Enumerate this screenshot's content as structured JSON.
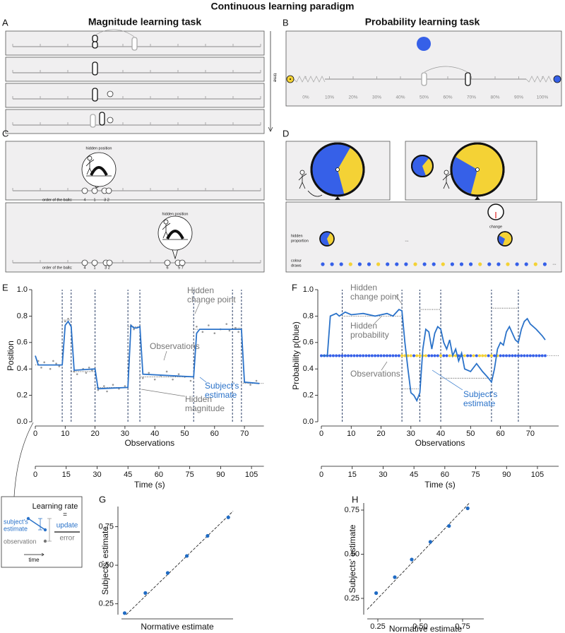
{
  "title": "Continuous learning paradigm",
  "panels": {
    "A": {
      "label": "A",
      "title": "Magnitude learning task",
      "time": "time"
    },
    "B": {
      "label": "B",
      "title": "Probability learning task",
      "scale": [
        "0%",
        "10%",
        "20%",
        "30%",
        "40%",
        "50%",
        "60%",
        "70%",
        "80%",
        "90%",
        "100%"
      ]
    },
    "C": {
      "label": "C",
      "top": {
        "hidden": "hidden position",
        "order": "order of the balls:",
        "balls": [
          "4",
          "1",
          "3 2"
        ]
      },
      "bottom": {
        "hidden": "hidden position",
        "order": "order of the balls:",
        "balls": [
          "4",
          "1",
          "3 2",
          "6",
          "5 7"
        ]
      }
    },
    "D": {
      "label": "D",
      "change": "change",
      "hidden_proportion": [
        "hidden",
        "proportion"
      ],
      "colour_draws": [
        "colour",
        "draws"
      ],
      "ellipsis": [
        "...",
        "..."
      ],
      "draws": "bbbybbybbbybbybbbybbybbyb",
      "colors": {
        "b": "#3660e8",
        "y": "#f4d235"
      }
    },
    "inset": {
      "title": "Learning rate",
      "equals": "=",
      "estimate": [
        "subject's",
        "estimate"
      ],
      "update": "update",
      "error": "error",
      "observation": "observation",
      "time": "time"
    }
  },
  "chart_data": [
    {
      "label": "E",
      "type": "line",
      "xlabel": "Observations",
      "ylabel": "Position",
      "xlim": [
        0,
        76.5
      ],
      "xticks": [
        0,
        10,
        20,
        30,
        40,
        50,
        60,
        70
      ],
      "ylim": [
        0,
        1
      ],
      "yticks": [
        {
          "value": 0,
          "label": "0.0"
        },
        0.2,
        0.4,
        0.6,
        0.8,
        {
          "value": 1,
          "label": "1.0"
        }
      ],
      "x2label": "Time (s)",
      "x2lim": [
        0,
        111
      ],
      "x2ticks": [
        0,
        15,
        30,
        45,
        60,
        75,
        90,
        105
      ],
      "change_points": [
        9,
        12,
        20,
        31,
        35,
        53,
        66,
        69
      ],
      "hidden_levels": [
        0.43,
        0.77,
        0.38,
        0.26,
        0.72,
        0.34,
        0.7,
        0.71,
        0.29
      ],
      "estimate": {
        "color": "#2a72c9",
        "x": [
          0,
          1,
          9,
          10,
          11,
          12,
          13,
          20,
          21,
          31,
          32,
          33,
          34,
          35,
          36,
          53,
          54,
          55,
          69,
          70,
          75
        ],
        "values": [
          0.5,
          0.43,
          0.43,
          0.73,
          0.76,
          0.72,
          0.39,
          0.4,
          0.25,
          0.26,
          0.73,
          0.71,
          0.71,
          0.72,
          0.36,
          0.34,
          0.67,
          0.7,
          0.7,
          0.3,
          0.29
        ]
      },
      "observations": {
        "color": "#9a9a9a",
        "x": [
          1,
          2,
          3,
          5,
          6,
          7,
          8,
          10,
          11,
          13,
          14,
          16,
          17,
          18,
          19,
          21,
          23,
          24,
          26,
          28,
          30,
          32,
          33,
          36,
          38,
          40,
          42,
          44,
          46,
          48,
          50,
          52,
          54,
          56,
          58,
          60,
          62,
          64,
          65,
          67,
          68,
          70,
          72,
          74
        ],
        "values": [
          0.46,
          0.41,
          0.45,
          0.4,
          0.46,
          0.44,
          0.42,
          0.76,
          0.78,
          0.38,
          0.36,
          0.4,
          0.37,
          0.41,
          0.39,
          0.24,
          0.27,
          0.23,
          0.28,
          0.25,
          0.27,
          0.73,
          0.7,
          0.33,
          0.37,
          0.32,
          0.35,
          0.38,
          0.32,
          0.36,
          0.34,
          0.31,
          0.72,
          0.68,
          0.73,
          0.67,
          0.7,
          0.74,
          0.69,
          0.71,
          0.68,
          0.3,
          0.28,
          0.31
        ]
      },
      "annotations": {
        "change_point": [
          "Hidden",
          "change point"
        ],
        "observations": "Observations",
        "hidden": [
          "Hidden",
          "magnitude"
        ],
        "estimate": [
          "Subject's",
          "estimate"
        ]
      }
    },
    {
      "label": "F",
      "type": "line",
      "xlabel": "Observations",
      "ylabel": "Probability p(blue)",
      "xlim": [
        0,
        79.5
      ],
      "xticks": [
        0,
        10,
        20,
        30,
        40,
        50,
        60,
        70
      ],
      "ylim": [
        0,
        1
      ],
      "yticks": [
        {
          "value": 0,
          "label": "0.0"
        },
        0.2,
        0.4,
        0.6,
        0.8,
        {
          "value": 1,
          "label": "1.0"
        }
      ],
      "x2label": "Time (s)",
      "x2lim": [
        0,
        115.3
      ],
      "x2ticks": [
        0,
        15,
        30,
        45,
        60,
        75,
        90,
        105
      ],
      "change_points": [
        7,
        27,
        33,
        40,
        57,
        66
      ],
      "hidden_segments": [
        [
          7,
          27,
          0.8
        ],
        [
          27,
          33,
          0.25
        ],
        [
          33,
          40,
          0.85
        ],
        [
          40,
          57,
          0.33
        ],
        [
          57,
          66,
          0.86
        ]
      ],
      "estimate": {
        "color": "#2a72c9",
        "x": [
          0,
          2,
          3,
          5,
          6,
          8,
          10,
          14,
          18,
          22,
          24,
          26,
          27,
          28,
          29,
          30,
          31,
          32,
          33,
          34,
          35,
          36,
          37,
          38,
          39,
          40,
          41,
          42,
          43,
          44,
          45,
          46,
          47,
          48,
          50,
          52,
          54,
          56,
          57,
          58,
          59,
          60,
          61,
          62,
          63,
          65,
          66,
          67,
          68,
          69,
          70,
          72,
          74,
          75
        ],
        "values": [
          0.5,
          0.5,
          0.8,
          0.82,
          0.8,
          0.83,
          0.81,
          0.82,
          0.8,
          0.82,
          0.8,
          0.85,
          0.84,
          0.6,
          0.4,
          0.22,
          0.2,
          0.16,
          0.22,
          0.55,
          0.7,
          0.68,
          0.55,
          0.67,
          0.72,
          0.7,
          0.6,
          0.55,
          0.62,
          0.5,
          0.55,
          0.46,
          0.52,
          0.4,
          0.38,
          0.44,
          0.38,
          0.33,
          0.3,
          0.4,
          0.55,
          0.6,
          0.58,
          0.68,
          0.72,
          0.62,
          0.6,
          0.7,
          0.76,
          0.78,
          0.74,
          0.7,
          0.65,
          0.62
        ]
      },
      "observations": {
        "y": 0.5,
        "x": [
          0,
          1,
          2,
          3,
          4,
          5,
          6,
          7,
          8,
          9,
          10,
          11,
          12,
          13,
          14,
          15,
          16,
          17,
          18,
          19,
          20,
          21,
          22,
          23,
          24,
          25,
          26,
          27,
          28,
          29,
          30,
          31,
          32,
          33,
          34,
          35,
          36,
          37,
          38,
          39,
          40,
          41,
          42,
          43,
          44,
          45,
          46,
          47,
          48,
          49,
          50,
          51,
          52,
          53,
          54,
          55,
          56,
          57,
          58,
          59,
          60,
          61,
          62,
          63,
          64,
          65,
          66,
          67,
          68,
          69,
          70,
          71,
          72,
          73,
          74,
          75
        ],
        "outcomes": "bbbbbbbbbbbbbbbbbbbbbbbbbbbyyyybyyyybbbbybbyyybbybbybyyybybybbbbbbbbbbbbbbbb",
        "colors": {
          "b": "#3660e8",
          "y": "#f4d235"
        }
      },
      "annotations": {
        "change_point": [
          "Hidden",
          "change point"
        ],
        "hidden": [
          "Hidden",
          "probability"
        ],
        "observations": "Observations",
        "estimate": [
          "Subject's",
          "estimate"
        ]
      }
    },
    {
      "label": "G",
      "type": "scatter",
      "xlabel": "Normative estimate",
      "ylabel": "Subjects' estimate",
      "xlim": [
        0.15,
        0.85
      ],
      "ylim": [
        0.18,
        0.88
      ],
      "yticks": [
        0.25,
        {
          "value": 0.5,
          "label": "0.50"
        },
        0.75
      ],
      "color": "#1f6bc4",
      "x": [
        0.17,
        0.3,
        0.44,
        0.56,
        0.69,
        0.82
      ],
      "values": [
        0.19,
        0.32,
        0.45,
        0.56,
        0.69,
        0.81
      ]
    },
    {
      "label": "H",
      "type": "scatter",
      "xlabel": "Normative estimate",
      "ylabel": "Subjects' estimate",
      "xlim": [
        0.1875,
        0.875
      ],
      "ylim": [
        0.158,
        0.79
      ],
      "xticks": [
        0.25,
        {
          "value": 0.5,
          "label": "0.50"
        },
        0.75
      ],
      "yticks": [
        0.25,
        {
          "value": 0.5,
          "label": "0.50"
        },
        0.75
      ],
      "color": "#1f6bc4",
      "x": [
        0.24,
        0.35,
        0.45,
        0.56,
        0.67,
        0.78
      ],
      "values": [
        0.28,
        0.37,
        0.47,
        0.57,
        0.66,
        0.76
      ]
    }
  ]
}
